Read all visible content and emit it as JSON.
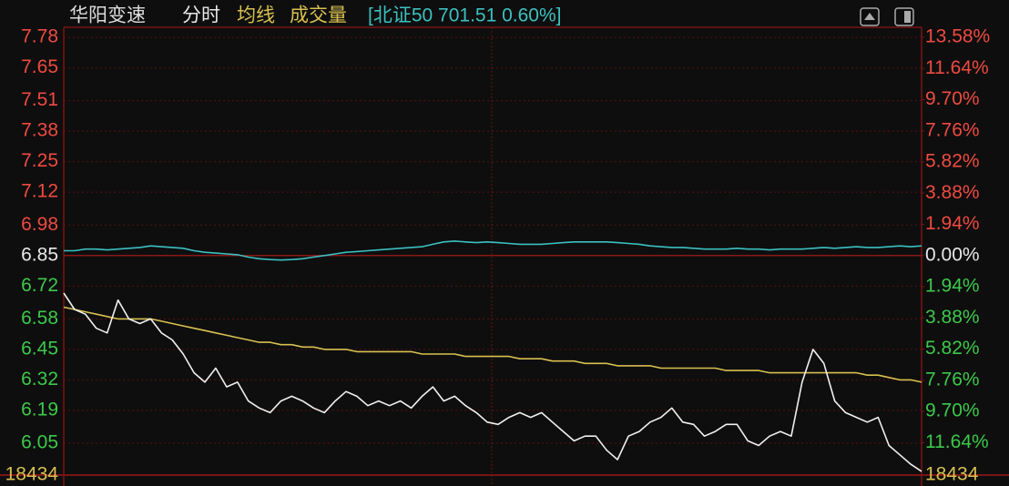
{
  "chart_data": {
    "type": "line",
    "title": "华阳变速",
    "mode": "分时",
    "volume_title": "成交量",
    "index_label": "[北证50 701.51 0.60%]",
    "volume": 18434,
    "ylim": [
      5.914,
      7.823
    ],
    "yticks": [
      7.78,
      7.65,
      7.51,
      7.38,
      7.25,
      7.12,
      6.98,
      6.85,
      6.72,
      6.58,
      6.45,
      6.32,
      6.19,
      6.05
    ],
    "y2lim": [
      -13.66,
      14.2
    ],
    "y2ticks": [
      {
        "value": 13.58,
        "label": "13.58%"
      },
      {
        "value": 11.64,
        "label": "11.64%"
      },
      {
        "value": 9.7,
        "label": "9.70%"
      },
      {
        "value": 7.76,
        "label": "7.76%"
      },
      {
        "value": 5.82,
        "label": "5.82%"
      },
      {
        "value": 3.88,
        "label": "3.88%"
      },
      {
        "value": 1.94,
        "label": "1.94%"
      },
      {
        "value": 0,
        "label": "0.00%"
      },
      {
        "value": -1.94,
        "label": "1.94%"
      },
      {
        "value": -3.88,
        "label": "3.88%"
      },
      {
        "value": -5.82,
        "label": "5.82%"
      },
      {
        "value": -7.76,
        "label": "7.76%"
      },
      {
        "value": -9.7,
        "label": "9.70%"
      },
      {
        "value": -11.64,
        "label": "11.64%"
      }
    ],
    "up_color": "#ee4a40",
    "down_color": "#3cc84a",
    "flat_color": "#e8e8e8",
    "grid": true,
    "series": [
      {
        "color": "#f0f0f0",
        "axis": "y",
        "values": [
          6.69,
          6.62,
          6.6,
          6.54,
          6.52,
          6.66,
          6.58,
          6.56,
          6.58,
          6.52,
          6.49,
          6.43,
          6.35,
          6.31,
          6.37,
          6.29,
          6.31,
          6.23,
          6.2,
          6.18,
          6.23,
          6.25,
          6.23,
          6.2,
          6.18,
          6.23,
          6.27,
          6.25,
          6.21,
          6.23,
          6.21,
          6.23,
          6.2,
          6.25,
          6.29,
          6.23,
          6.25,
          6.21,
          6.18,
          6.14,
          6.13,
          6.16,
          6.18,
          6.16,
          6.18,
          6.14,
          6.1,
          6.06,
          6.08,
          6.08,
          6.02,
          5.98,
          6.08,
          6.1,
          6.14,
          6.16,
          6.2,
          6.14,
          6.13,
          6.08,
          6.1,
          6.13,
          6.13,
          6.06,
          6.04,
          6.08,
          6.1,
          6.08,
          6.31,
          6.45,
          6.39,
          6.23,
          6.18,
          6.16,
          6.14,
          6.16,
          6.04,
          6.0,
          5.96,
          5.93
        ]
      },
      {
        "name": "均线",
        "color": "#d8c050",
        "axis": "y",
        "values": [
          6.63,
          6.62,
          6.61,
          6.6,
          6.59,
          6.58,
          6.58,
          6.58,
          6.58,
          6.57,
          6.56,
          6.55,
          6.54,
          6.53,
          6.52,
          6.51,
          6.5,
          6.49,
          6.48,
          6.48,
          6.47,
          6.47,
          6.46,
          6.46,
          6.45,
          6.45,
          6.45,
          6.44,
          6.44,
          6.44,
          6.44,
          6.44,
          6.44,
          6.43,
          6.43,
          6.43,
          6.43,
          6.42,
          6.42,
          6.42,
          6.42,
          6.42,
          6.41,
          6.41,
          6.41,
          6.4,
          6.4,
          6.4,
          6.39,
          6.39,
          6.39,
          6.38,
          6.38,
          6.38,
          6.38,
          6.37,
          6.37,
          6.37,
          6.37,
          6.37,
          6.37,
          6.36,
          6.36,
          6.36,
          6.36,
          6.35,
          6.35,
          6.35,
          6.35,
          6.35,
          6.35,
          6.35,
          6.35,
          6.35,
          6.34,
          6.34,
          6.33,
          6.32,
          6.32,
          6.31
        ]
      },
      {
        "color": "#3cc0c0",
        "axis": "y2",
        "values": [
          0.3,
          0.3,
          0.4,
          0.4,
          0.35,
          0.4,
          0.45,
          0.5,
          0.6,
          0.55,
          0.5,
          0.45,
          0.3,
          0.2,
          0.15,
          0.1,
          0.05,
          -0.1,
          -0.2,
          -0.25,
          -0.28,
          -0.25,
          -0.2,
          -0.1,
          0,
          0.1,
          0.2,
          0.25,
          0.3,
          0.35,
          0.4,
          0.45,
          0.5,
          0.55,
          0.7,
          0.85,
          0.9,
          0.85,
          0.8,
          0.85,
          0.8,
          0.75,
          0.7,
          0.7,
          0.7,
          0.75,
          0.8,
          0.85,
          0.85,
          0.85,
          0.85,
          0.8,
          0.75,
          0.7,
          0.6,
          0.55,
          0.5,
          0.5,
          0.45,
          0.4,
          0.4,
          0.4,
          0.45,
          0.4,
          0.4,
          0.35,
          0.4,
          0.4,
          0.4,
          0.45,
          0.5,
          0.45,
          0.5,
          0.55,
          0.5,
          0.5,
          0.55,
          0.6,
          0.55,
          0.6
        ]
      }
    ]
  }
}
